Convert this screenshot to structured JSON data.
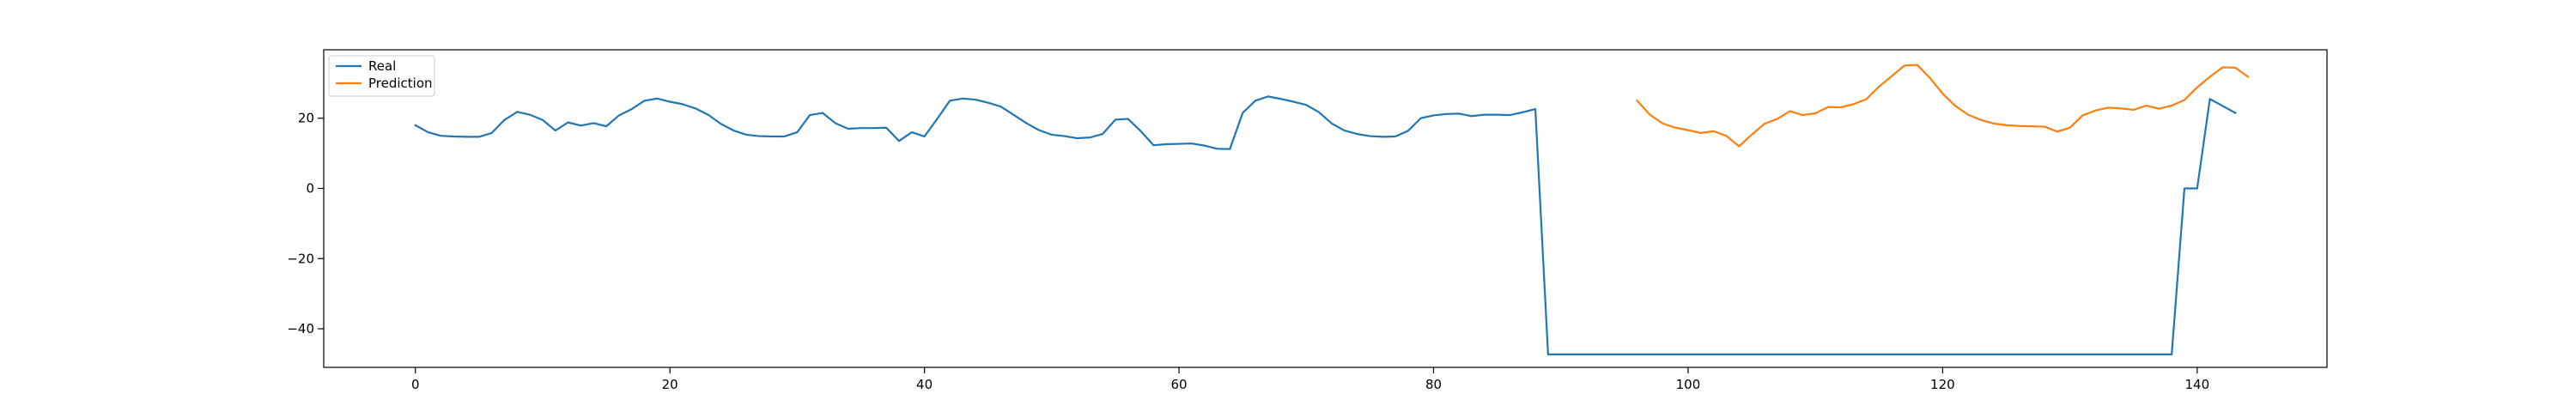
{
  "chart_data": {
    "type": "line",
    "title": "",
    "xlabel": "",
    "ylabel": "",
    "xlim": [
      -7.2,
      150.2
    ],
    "ylim": [
      -51.0,
      39.5
    ],
    "xticks": [
      0,
      20,
      40,
      60,
      80,
      100,
      120,
      140
    ],
    "yticks": [
      -40,
      -20,
      0,
      20
    ],
    "grid": false,
    "legend_position": "upper-left",
    "series": [
      {
        "name": "Real",
        "color": "#1f77b4",
        "x0": 0,
        "values": [
          18.0,
          16.0,
          15.0,
          14.8,
          14.7,
          14.7,
          15.8,
          19.5,
          21.8,
          21.0,
          19.5,
          16.5,
          18.8,
          17.9,
          18.6,
          17.7,
          20.8,
          22.6,
          25.0,
          25.6,
          24.7,
          24.0,
          22.8,
          21.0,
          18.4,
          16.5,
          15.3,
          14.9,
          14.8,
          14.8,
          16.0,
          20.9,
          21.5,
          18.6,
          17.0,
          17.2,
          17.2,
          17.3,
          13.5,
          16.0,
          14.8,
          19.8,
          25.0,
          25.6,
          25.3,
          24.4,
          23.3,
          21.0,
          18.6,
          16.6,
          15.3,
          14.9,
          14.3,
          14.5,
          15.5,
          19.6,
          19.8,
          16.3,
          12.3,
          12.6,
          12.7,
          12.8,
          12.2,
          11.3,
          11.2,
          21.5,
          25.0,
          26.2,
          25.5,
          24.7,
          23.8,
          21.7,
          18.5,
          16.5,
          15.5,
          14.9,
          14.7,
          14.8,
          16.4,
          20.0,
          20.8,
          21.2,
          21.3,
          20.6,
          21.0,
          21.0,
          20.9,
          21.7,
          22.6,
          -47.3,
          -47.3,
          -47.3,
          -47.3,
          -47.3,
          -47.3,
          -47.3,
          -47.3,
          -47.3,
          -47.3,
          -47.3,
          -47.3,
          -47.3,
          -47.3,
          -47.3,
          -47.3,
          -47.3,
          -47.3,
          -47.3,
          -47.3,
          -47.3,
          -47.3,
          -47.3,
          -47.3,
          -47.3,
          -47.3,
          -47.3,
          -47.3,
          -47.3,
          -47.3,
          -47.3,
          -47.3,
          -47.3,
          -47.3,
          -47.3,
          -47.3,
          -47.3,
          -47.3,
          -47.3,
          -47.3,
          -47.3,
          -47.3,
          -47.3,
          -47.3,
          -47.3,
          -47.3,
          -47.3,
          -47.3,
          -47.3,
          -47.3,
          0.0,
          0.0,
          25.5,
          23.5,
          21.5
        ]
      },
      {
        "name": "Prediction",
        "color": "#ff7f0e",
        "x0": 96,
        "values": [
          25.0,
          21.0,
          18.5,
          17.3,
          16.6,
          15.8,
          16.3,
          15.0,
          12.0,
          15.3,
          18.4,
          19.8,
          22.0,
          20.9,
          21.4,
          23.2,
          23.1,
          24.0,
          25.4,
          29.0,
          32.0,
          35.0,
          35.2,
          31.5,
          27.0,
          23.5,
          21.0,
          19.5,
          18.5,
          18.0,
          17.8,
          17.7,
          17.6,
          16.2,
          17.3,
          20.8,
          22.2,
          23.0,
          22.8,
          22.4,
          23.6,
          22.7,
          23.6,
          25.2,
          28.8,
          31.8,
          34.5,
          34.4,
          31.8
        ]
      }
    ]
  }
}
